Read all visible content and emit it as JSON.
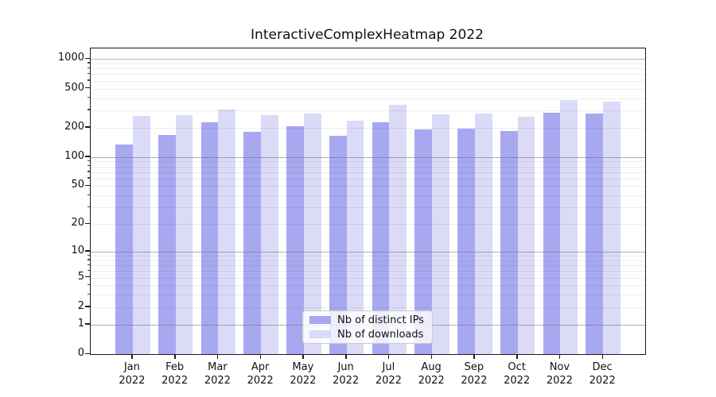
{
  "title": "InteractiveComplexHeatmap 2022",
  "colors": {
    "ips_bar": "#a8a8f0",
    "downloads_bar": "#dbdbf8",
    "grid_major": "#6e6e6e",
    "grid_minor": "#e8e8e8",
    "axis_spine": "#1a1a1a",
    "legend_border": "#cccccc"
  },
  "legend": {
    "items": [
      {
        "label": "Nb of distinct IPs",
        "series": "ips"
      },
      {
        "label": "Nb of downloads",
        "series": "downloads"
      }
    ],
    "position": "lower center"
  },
  "x_axis": {
    "months": [
      "Jan",
      "Feb",
      "Mar",
      "Apr",
      "May",
      "Jun",
      "Jul",
      "Aug",
      "Sep",
      "Oct",
      "Nov",
      "Dec"
    ],
    "year": "2022"
  },
  "y_axis": {
    "tick_labels": [
      "1000",
      "500",
      "200",
      "100",
      "50",
      "20",
      "10",
      "5",
      "2",
      "1",
      "0"
    ]
  },
  "chart_data": {
    "type": "bar",
    "title": "InteractiveComplexHeatmap 2022",
    "categories": [
      "Jan 2022",
      "Feb 2022",
      "Mar 2022",
      "Apr 2022",
      "May 2022",
      "Jun 2022",
      "Jul 2022",
      "Aug 2022",
      "Sep 2022",
      "Oct 2022",
      "Nov 2022",
      "Dec 2022"
    ],
    "series": [
      {
        "name": "Nb of distinct IPs",
        "values": [
          135,
          168,
          228,
          181,
          205,
          165,
          225,
          191,
          196,
          183,
          285,
          277
        ]
      },
      {
        "name": "Nb of downloads",
        "values": [
          263,
          270,
          308,
          267,
          277,
          235,
          340,
          271,
          277,
          258,
          383,
          369
        ]
      }
    ],
    "xlabel": "",
    "ylabel": "",
    "yscale": "symlog (position ~ log(1+v))",
    "yticks": [
      0,
      1,
      2,
      5,
      10,
      20,
      50,
      100,
      200,
      500,
      1000
    ],
    "ylim": [
      0,
      1280
    ],
    "grid": "major and minor horizontal gridlines, drawn over bars",
    "legend_position": "lower center"
  }
}
